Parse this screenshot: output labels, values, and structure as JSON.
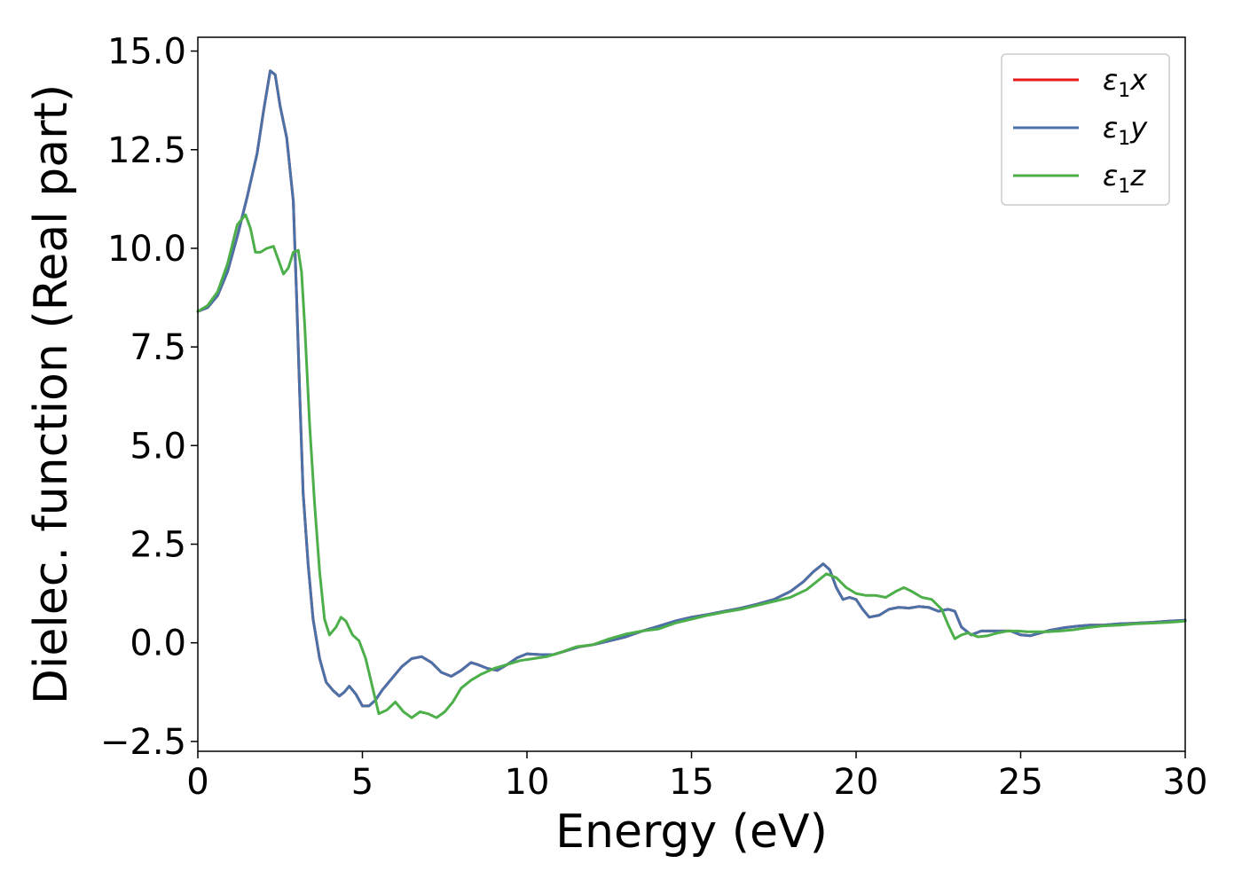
{
  "chart_data": {
    "type": "line",
    "xlabel": "Energy (eV)",
    "ylabel": "Dielec. function (Real part)",
    "xlim": [
      0,
      30
    ],
    "ylim": [
      -2.75,
      15.35
    ],
    "xticks": [
      0,
      5,
      10,
      15,
      20,
      25,
      30
    ],
    "xtick_labels": [
      "0",
      "5",
      "10",
      "15",
      "20",
      "25",
      "30"
    ],
    "yticks": [
      -2.5,
      0.0,
      2.5,
      5.0,
      7.5,
      10.0,
      12.5,
      15.0
    ],
    "ytick_labels": [
      "−2.5",
      "0.0",
      "2.5",
      "5.0",
      "7.5",
      "10.0",
      "12.5",
      "15.0"
    ],
    "grid": false,
    "legend_position": "top-right",
    "series": [
      {
        "name": "ε",
        "name_sub": "1",
        "name_suffix": "x",
        "color": "#e41a1c",
        "x": [
          0,
          0.3,
          0.6,
          0.9,
          1.2,
          1.5,
          1.8,
          2.0,
          2.2,
          2.35,
          2.5,
          2.7,
          2.9,
          3.0,
          3.1,
          3.2,
          3.35,
          3.5,
          3.7,
          3.9,
          4.1,
          4.3,
          4.45,
          4.6,
          4.8,
          5.0,
          5.2,
          5.4,
          5.6,
          5.9,
          6.2,
          6.5,
          6.8,
          7.1,
          7.4,
          7.7,
          8.0,
          8.3,
          8.5,
          8.8,
          9.1,
          9.4,
          9.7,
          10.0,
          10.4,
          10.8,
          11.2,
          11.6,
          12.0,
          12.5,
          13.0,
          13.5,
          14.0,
          14.5,
          15.0,
          15.5,
          16.0,
          16.5,
          17.0,
          17.5,
          18.0,
          18.4,
          18.7,
          19.0,
          19.2,
          19.4,
          19.6,
          19.8,
          20.0,
          20.2,
          20.4,
          20.7,
          21.0,
          21.3,
          21.6,
          21.9,
          22.2,
          22.5,
          22.8,
          23.0,
          23.2,
          23.5,
          23.8,
          24.1,
          24.4,
          24.7,
          25.0,
          25.3,
          25.6,
          25.9,
          26.3,
          26.7,
          27.1,
          27.5,
          28.0,
          28.5,
          29.0,
          29.5,
          30.0
        ],
        "y": [
          8.4,
          8.5,
          8.8,
          9.4,
          10.3,
          11.3,
          12.4,
          13.5,
          14.5,
          14.4,
          13.6,
          12.8,
          11.2,
          8.8,
          6.2,
          3.8,
          2.0,
          0.6,
          -0.4,
          -1.0,
          -1.2,
          -1.35,
          -1.25,
          -1.1,
          -1.3,
          -1.6,
          -1.6,
          -1.45,
          -1.2,
          -0.9,
          -0.6,
          -0.4,
          -0.35,
          -0.5,
          -0.75,
          -0.85,
          -0.7,
          -0.5,
          -0.55,
          -0.65,
          -0.7,
          -0.55,
          -0.38,
          -0.28,
          -0.3,
          -0.3,
          -0.2,
          -0.1,
          -0.05,
          0.05,
          0.15,
          0.3,
          0.42,
          0.55,
          0.65,
          0.72,
          0.8,
          0.88,
          0.98,
          1.1,
          1.3,
          1.55,
          1.8,
          2.0,
          1.85,
          1.4,
          1.1,
          1.15,
          1.1,
          0.85,
          0.65,
          0.7,
          0.85,
          0.9,
          0.88,
          0.92,
          0.9,
          0.8,
          0.85,
          0.8,
          0.4,
          0.2,
          0.3,
          0.3,
          0.3,
          0.3,
          0.2,
          0.18,
          0.25,
          0.32,
          0.38,
          0.42,
          0.45,
          0.45,
          0.48,
          0.5,
          0.52,
          0.55,
          0.57
        ]
      },
      {
        "name": "ε",
        "name_sub": "1",
        "name_suffix": "y",
        "color": "#4a72a8",
        "x": [
          0,
          0.3,
          0.6,
          0.9,
          1.2,
          1.5,
          1.8,
          2.0,
          2.2,
          2.35,
          2.5,
          2.7,
          2.9,
          3.0,
          3.1,
          3.2,
          3.35,
          3.5,
          3.7,
          3.9,
          4.1,
          4.3,
          4.45,
          4.6,
          4.8,
          5.0,
          5.2,
          5.4,
          5.6,
          5.9,
          6.2,
          6.5,
          6.8,
          7.1,
          7.4,
          7.7,
          8.0,
          8.3,
          8.5,
          8.8,
          9.1,
          9.4,
          9.7,
          10.0,
          10.4,
          10.8,
          11.2,
          11.6,
          12.0,
          12.5,
          13.0,
          13.5,
          14.0,
          14.5,
          15.0,
          15.5,
          16.0,
          16.5,
          17.0,
          17.5,
          18.0,
          18.4,
          18.7,
          19.0,
          19.2,
          19.4,
          19.6,
          19.8,
          20.0,
          20.2,
          20.4,
          20.7,
          21.0,
          21.3,
          21.6,
          21.9,
          22.2,
          22.5,
          22.8,
          23.0,
          23.2,
          23.5,
          23.8,
          24.1,
          24.4,
          24.7,
          25.0,
          25.3,
          25.6,
          25.9,
          26.3,
          26.7,
          27.1,
          27.5,
          28.0,
          28.5,
          29.0,
          29.5,
          30.0
        ],
        "y": [
          8.4,
          8.5,
          8.8,
          9.4,
          10.3,
          11.3,
          12.4,
          13.5,
          14.5,
          14.4,
          13.6,
          12.8,
          11.2,
          8.8,
          6.2,
          3.8,
          2.0,
          0.6,
          -0.4,
          -1.0,
          -1.2,
          -1.35,
          -1.25,
          -1.1,
          -1.3,
          -1.6,
          -1.6,
          -1.45,
          -1.2,
          -0.9,
          -0.6,
          -0.4,
          -0.35,
          -0.5,
          -0.75,
          -0.85,
          -0.7,
          -0.5,
          -0.55,
          -0.65,
          -0.7,
          -0.55,
          -0.38,
          -0.28,
          -0.3,
          -0.3,
          -0.2,
          -0.1,
          -0.05,
          0.05,
          0.15,
          0.3,
          0.42,
          0.55,
          0.65,
          0.72,
          0.8,
          0.88,
          0.98,
          1.1,
          1.3,
          1.55,
          1.8,
          2.0,
          1.85,
          1.4,
          1.1,
          1.15,
          1.1,
          0.85,
          0.65,
          0.7,
          0.85,
          0.9,
          0.88,
          0.92,
          0.9,
          0.8,
          0.85,
          0.8,
          0.4,
          0.2,
          0.3,
          0.3,
          0.3,
          0.3,
          0.2,
          0.18,
          0.25,
          0.32,
          0.38,
          0.42,
          0.45,
          0.45,
          0.48,
          0.5,
          0.52,
          0.55,
          0.57
        ]
      },
      {
        "name": "ε",
        "name_sub": "1",
        "name_suffix": "z",
        "color": "#4daf4a",
        "x": [
          0,
          0.3,
          0.6,
          0.9,
          1.2,
          1.45,
          1.6,
          1.75,
          1.9,
          2.1,
          2.3,
          2.45,
          2.6,
          2.75,
          2.9,
          3.05,
          3.15,
          3.25,
          3.4,
          3.55,
          3.7,
          3.85,
          4.0,
          4.2,
          4.35,
          4.5,
          4.7,
          4.9,
          5.1,
          5.3,
          5.5,
          5.75,
          6.0,
          6.25,
          6.5,
          6.75,
          7.0,
          7.25,
          7.5,
          7.75,
          8.0,
          8.3,
          8.6,
          9.0,
          9.4,
          9.8,
          10.2,
          10.6,
          11.0,
          11.5,
          12.0,
          12.5,
          13.0,
          13.5,
          14.0,
          14.5,
          15.0,
          15.5,
          16.0,
          16.5,
          17.0,
          17.5,
          18.0,
          18.5,
          18.8,
          19.1,
          19.4,
          19.7,
          20.0,
          20.3,
          20.6,
          20.9,
          21.2,
          21.45,
          21.7,
          22.0,
          22.3,
          22.6,
          22.8,
          23.0,
          23.2,
          23.4,
          23.7,
          24.0,
          24.3,
          24.6,
          24.9,
          25.2,
          25.5,
          25.8,
          26.2,
          26.6,
          27.0,
          27.5,
          28.0,
          28.5,
          29.0,
          29.5,
          30.0
        ],
        "y": [
          8.4,
          8.55,
          8.9,
          9.6,
          10.6,
          10.85,
          10.5,
          9.9,
          9.9,
          10.0,
          10.05,
          9.7,
          9.35,
          9.5,
          9.9,
          9.95,
          9.4,
          8.0,
          5.5,
          3.5,
          1.8,
          0.6,
          0.2,
          0.4,
          0.65,
          0.55,
          0.2,
          0.05,
          -0.4,
          -1.1,
          -1.8,
          -1.7,
          -1.5,
          -1.75,
          -1.9,
          -1.75,
          -1.8,
          -1.9,
          -1.75,
          -1.5,
          -1.15,
          -0.95,
          -0.8,
          -0.65,
          -0.55,
          -0.45,
          -0.4,
          -0.35,
          -0.25,
          -0.1,
          -0.05,
          0.1,
          0.22,
          0.3,
          0.35,
          0.5,
          0.6,
          0.7,
          0.78,
          0.85,
          0.95,
          1.05,
          1.15,
          1.35,
          1.55,
          1.75,
          1.65,
          1.4,
          1.25,
          1.2,
          1.2,
          1.15,
          1.3,
          1.4,
          1.3,
          1.15,
          1.1,
          0.85,
          0.45,
          0.1,
          0.2,
          0.25,
          0.15,
          0.18,
          0.25,
          0.3,
          0.3,
          0.28,
          0.28,
          0.28,
          0.3,
          0.33,
          0.38,
          0.43,
          0.45,
          0.48,
          0.5,
          0.52,
          0.55
        ]
      }
    ]
  }
}
